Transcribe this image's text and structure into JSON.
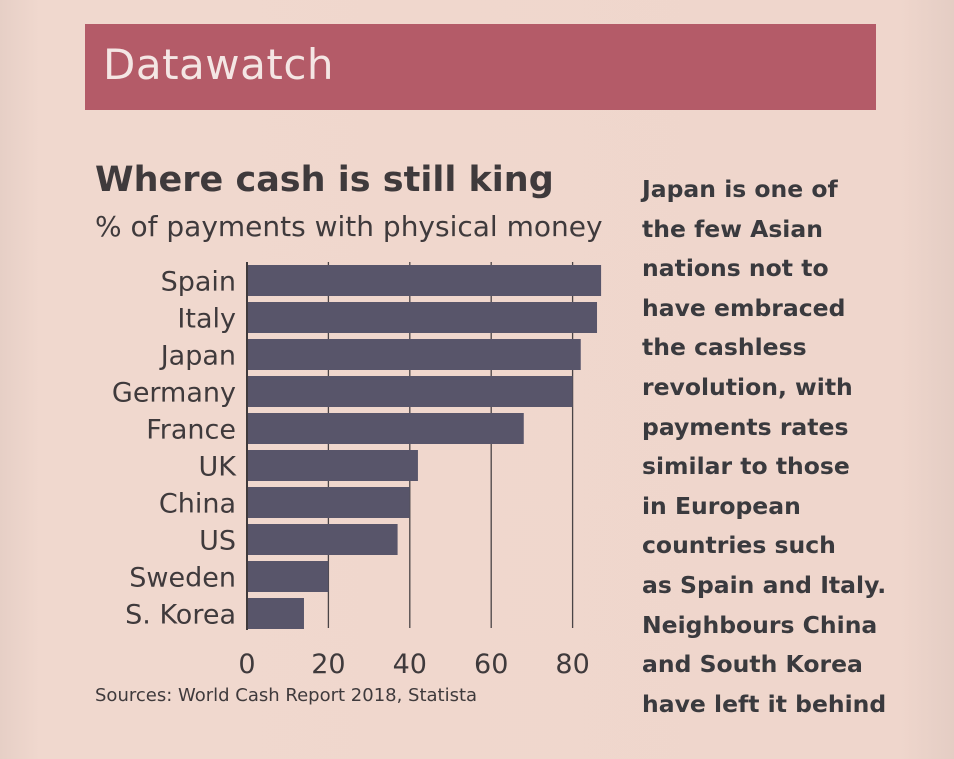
{
  "banner": {
    "title": "Datawatch"
  },
  "colors": {
    "banner": "#b45b68",
    "bar": "#58556a",
    "text": "#3f3a3c",
    "paper": "#efd6cc"
  },
  "chart_data": {
    "type": "bar",
    "orientation": "horizontal",
    "title": "Where cash is still king",
    "subtitle": "% of payments with physical money",
    "categories": [
      "Spain",
      "Italy",
      "Japan",
      "Germany",
      "France",
      "UK",
      "China",
      "US",
      "Sweden",
      "S. Korea"
    ],
    "values": [
      87,
      86,
      82,
      80,
      68,
      42,
      40,
      37,
      20,
      14
    ],
    "xticks": [
      "0",
      "20",
      "40",
      "60",
      "80"
    ],
    "xlim": [
      0,
      88
    ],
    "grid": true
  },
  "source": "Sources: World Cash Report 2018, Statista",
  "side_text": {
    "lines": [
      "Japan is one of",
      "the few Asian",
      "nations not to",
      "have embraced",
      "the cashless",
      "revolution, with",
      "payments rates",
      "similar to those",
      "in European",
      "countries such",
      "as Spain and Italy.",
      "Neighbours China",
      "and South Korea",
      "have left it behind"
    ]
  }
}
